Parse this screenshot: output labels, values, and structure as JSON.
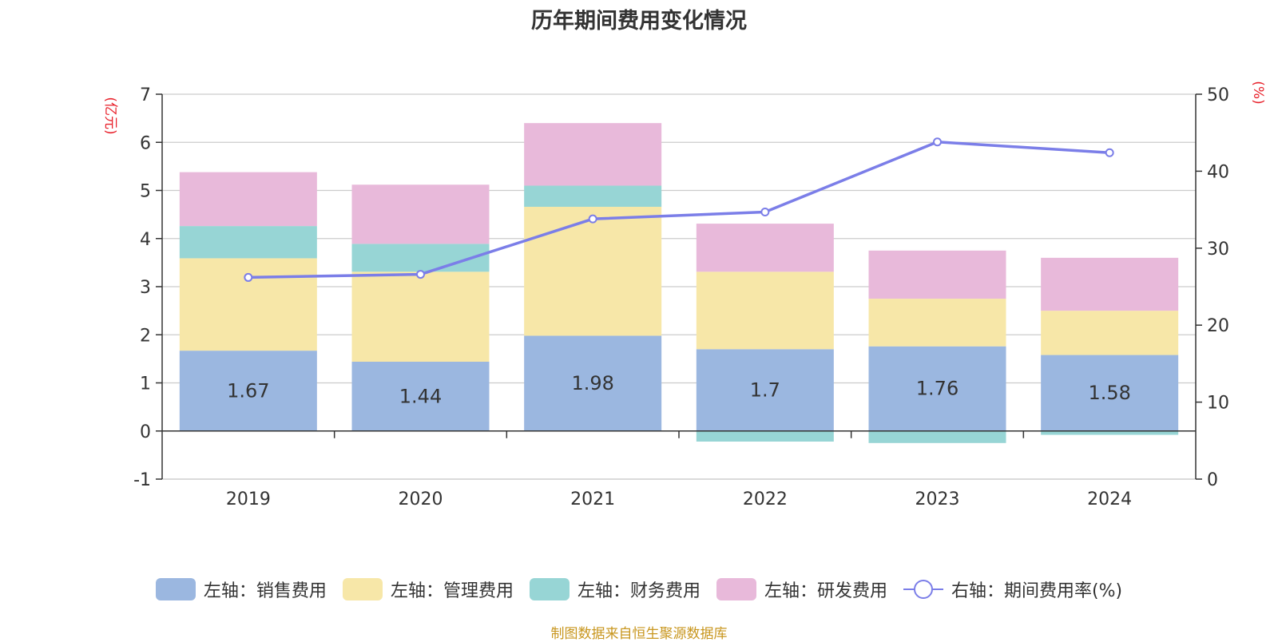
{
  "title": "历年期间费用变化情况",
  "source_note": "制图数据来自恒生聚源数据库",
  "chart_data": {
    "type": "bar",
    "stacked": true,
    "categories": [
      "2019",
      "2020",
      "2021",
      "2022",
      "2023",
      "2024"
    ],
    "y_left": {
      "label": "(亿元)",
      "ylim": [
        -1,
        7
      ],
      "ticks": [
        -1,
        0,
        1,
        2,
        3,
        4,
        5,
        6,
        7
      ]
    },
    "y_right": {
      "label": "(%)",
      "ylim": [
        0,
        50
      ],
      "ticks": [
        0,
        10,
        20,
        30,
        40,
        50
      ]
    },
    "grid": true,
    "legend_position": "bottom",
    "series": [
      {
        "name": "左轴：销售费用",
        "axis": "left",
        "type": "bar",
        "color": "#9bb7e0",
        "values": [
          1.67,
          1.44,
          1.98,
          1.7,
          1.76,
          1.58
        ],
        "show_labels": true
      },
      {
        "name": "左轴：管理费用",
        "axis": "left",
        "type": "bar",
        "color": "#f7e7a8",
        "values": [
          1.92,
          1.87,
          2.68,
          1.61,
          0.99,
          0.92
        ]
      },
      {
        "name": "左轴：财务费用",
        "axis": "left",
        "type": "bar",
        "color": "#97d5d5",
        "values": [
          0.67,
          0.58,
          0.44,
          -0.22,
          -0.25,
          -0.08
        ]
      },
      {
        "name": "左轴：研发费用",
        "axis": "left",
        "type": "bar",
        "color": "#e8b9da",
        "values": [
          1.12,
          1.23,
          1.3,
          1.0,
          1.0,
          1.1
        ]
      },
      {
        "name": "右轴：期间费用率(%)",
        "axis": "right",
        "type": "line",
        "color": "#7b7ee8",
        "values": [
          26.2,
          26.6,
          33.8,
          34.7,
          43.8,
          42.4
        ]
      }
    ]
  }
}
